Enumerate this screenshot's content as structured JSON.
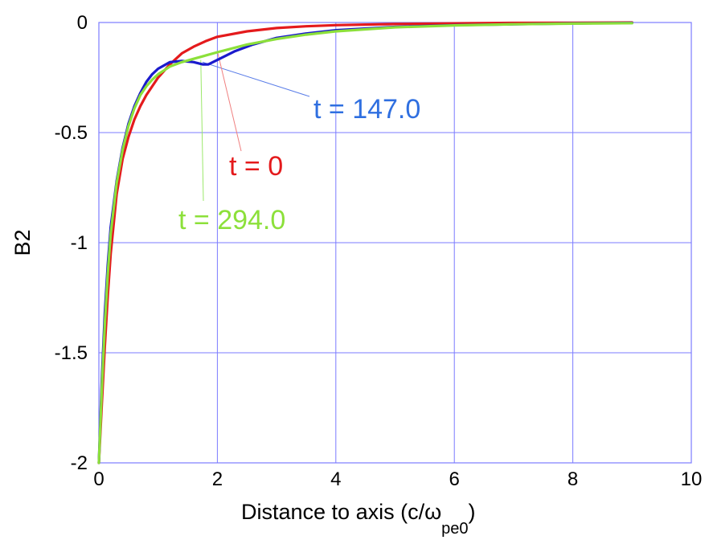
{
  "chart_data": {
    "type": "line",
    "xlabel": "Distance to axis (c/ω",
    "xlabel_subscript": "pe0",
    "xlabel_close": ")",
    "ylabel": "B2",
    "xlim": [
      0,
      10
    ],
    "ylim": [
      -2,
      0
    ],
    "x_ticks": [
      0,
      2,
      4,
      6,
      8,
      10
    ],
    "x_tick_labels": [
      "0",
      "2",
      "4",
      "6",
      "8",
      "10"
    ],
    "y_ticks": [
      0,
      -0.5,
      -1,
      -1.5,
      -2
    ],
    "y_tick_labels": [
      "0",
      "-0.5",
      "-1",
      "-1.5",
      "-2"
    ],
    "grid": true,
    "grid_color": "#7b7bff",
    "series": [
      {
        "name": "t = 0",
        "color": "#e41a1c",
        "x": [
          0,
          0.05,
          0.1,
          0.15,
          0.2,
          0.3,
          0.4,
          0.5,
          0.6,
          0.7,
          0.8,
          0.9,
          1.0,
          1.2,
          1.4,
          1.6,
          1.8,
          2.0,
          2.5,
          3.0,
          3.5,
          4.0,
          5.0,
          6.0,
          7.0,
          8.0,
          9.0
        ],
        "y": [
          -2.0,
          -1.73,
          -1.47,
          -1.24,
          -1.05,
          -0.78,
          -0.62,
          -0.52,
          -0.44,
          -0.38,
          -0.33,
          -0.29,
          -0.25,
          -0.19,
          -0.14,
          -0.11,
          -0.085,
          -0.065,
          -0.04,
          -0.025,
          -0.017,
          -0.012,
          -0.007,
          -0.004,
          -0.002,
          -0.001,
          0.0
        ]
      },
      {
        "name": "t = 147.0",
        "color": "#1a1acc",
        "x": [
          0,
          0.05,
          0.1,
          0.15,
          0.2,
          0.3,
          0.4,
          0.5,
          0.6,
          0.7,
          0.8,
          0.9,
          1.0,
          1.2,
          1.4,
          1.6,
          1.75,
          1.85,
          2.0,
          2.3,
          2.6,
          3.0,
          3.5,
          4.0,
          5.0,
          6.0,
          7.0,
          8.0,
          9.0
        ],
        "y": [
          -2.0,
          -1.62,
          -1.32,
          -1.1,
          -0.93,
          -0.72,
          -0.57,
          -0.46,
          -0.38,
          -0.32,
          -0.27,
          -0.235,
          -0.21,
          -0.18,
          -0.175,
          -0.18,
          -0.19,
          -0.19,
          -0.17,
          -0.13,
          -0.1,
          -0.07,
          -0.05,
          -0.035,
          -0.02,
          -0.012,
          -0.008,
          -0.004,
          -0.002
        ]
      },
      {
        "name": "t = 294.0",
        "color": "#8ce03a",
        "x": [
          0,
          0.05,
          0.1,
          0.15,
          0.2,
          0.3,
          0.4,
          0.5,
          0.6,
          0.7,
          0.8,
          0.9,
          1.0,
          1.2,
          1.4,
          1.6,
          1.8,
          2.0,
          2.5,
          3.0,
          3.5,
          4.0,
          5.0,
          6.0,
          7.0,
          8.0,
          9.0
        ],
        "y": [
          -2.0,
          -1.66,
          -1.37,
          -1.14,
          -0.96,
          -0.73,
          -0.58,
          -0.47,
          -0.39,
          -0.33,
          -0.29,
          -0.26,
          -0.235,
          -0.2,
          -0.18,
          -0.165,
          -0.15,
          -0.135,
          -0.1,
          -0.075,
          -0.055,
          -0.04,
          -0.022,
          -0.013,
          -0.008,
          -0.005,
          -0.003
        ]
      }
    ],
    "annotations": [
      {
        "text": "t = 147.0",
        "color": "#2f6fe0",
        "leader_color": "#5a7de8",
        "points_to": [
          1.75,
          -0.18
        ]
      },
      {
        "text": "t = 0",
        "color": "#e41a1c",
        "leader_color": "#f08080",
        "points_to": [
          2.0,
          -0.13
        ]
      },
      {
        "text": "t = 294.0",
        "color": "#8ce03a",
        "leader_color": "#9be86a",
        "points_to": [
          1.72,
          -0.17
        ]
      }
    ]
  }
}
